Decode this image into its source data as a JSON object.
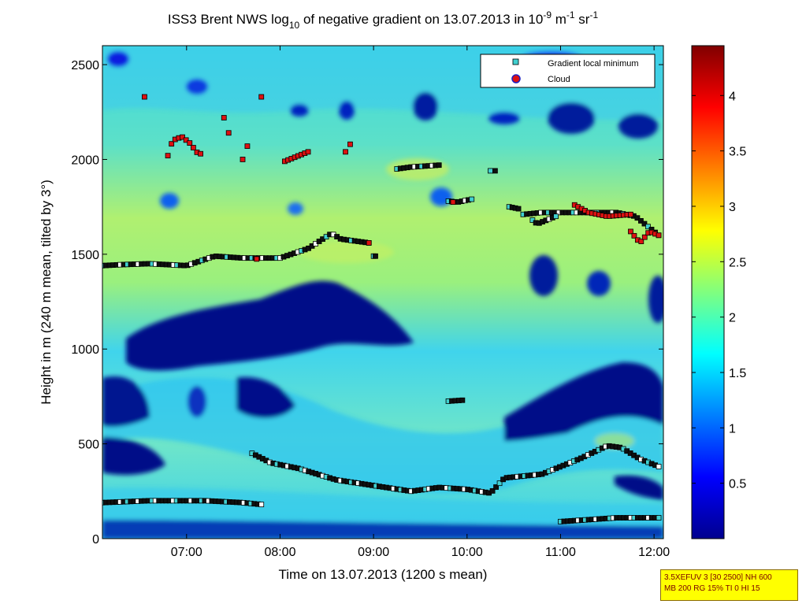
{
  "chart_data": {
    "type": "heatmap",
    "title": {
      "prefix": "ISS3 Brent NWS log",
      "sub": "10",
      "middle": " of negative gradient on 13.07.2013 in 10",
      "sup1": "-9",
      "unit1": " m",
      "sup2": "-1",
      "unit2": " sr",
      "sup3": "-1"
    },
    "xlabel": "Time on 13.07.2013 (1200 s mean)",
    "ylabel": "Height in m (240 m mean, tilted by 3°)",
    "xlim_hours": [
      6.1,
      12.1
    ],
    "ylim": [
      0,
      2600
    ],
    "x_ticks": [
      {
        "h": 7,
        "label": "07:00"
      },
      {
        "h": 8,
        "label": "08:00"
      },
      {
        "h": 9,
        "label": "09:00"
      },
      {
        "h": 10,
        "label": "10:00"
      },
      {
        "h": 11,
        "label": "11:00"
      },
      {
        "h": 12,
        "label": "12:00"
      }
    ],
    "y_ticks": [
      0,
      500,
      1000,
      1500,
      2000,
      2500
    ],
    "colorbar": {
      "range": [
        0,
        4.45
      ],
      "ticks": [
        "0.5",
        "1",
        "1.5",
        "2",
        "2.5",
        "3",
        "3.5",
        "4"
      ],
      "tick_values": [
        0.5,
        1,
        1.5,
        2,
        2.5,
        3,
        3.5,
        4
      ]
    },
    "legend": {
      "position": "top-right",
      "entries": [
        {
          "name": "Gradient local minimum",
          "color": "#40d0d0",
          "marker": "square"
        },
        {
          "name": "Cloud",
          "color": "#dd1111",
          "marker": "circle"
        }
      ]
    },
    "gradient_minima": [
      {
        "x": [
          6.1,
          6.3,
          6.6,
          7.0,
          7.3,
          7.6,
          8.0,
          8.3,
          8.55,
          8.65,
          8.8,
          8.95
        ],
        "y": [
          1440,
          1445,
          1450,
          1440,
          1490,
          1480,
          1480,
          1530,
          1610,
          1580,
          1570,
          1560
        ]
      },
      {
        "x": [
          9.0,
          9.02
        ],
        "y": [
          1490,
          1490
        ]
      },
      {
        "x": [
          9.25,
          9.4,
          9.55,
          9.7
        ],
        "y": [
          1950,
          1960,
          1965,
          1970
        ]
      },
      {
        "x": [
          9.8,
          9.9,
          10.05
        ],
        "y": [
          1780,
          1775,
          1790
        ]
      },
      {
        "x": [
          10.25,
          10.3
        ],
        "y": [
          1940,
          1940
        ]
      },
      {
        "x": [
          10.45,
          10.55
        ],
        "y": [
          1750,
          1740
        ]
      },
      {
        "x": [
          10.6,
          10.8,
          11.0,
          11.3,
          11.6,
          11.8,
          11.95,
          12.05
        ],
        "y": [
          1710,
          1720,
          1720,
          1720,
          1720,
          1700,
          1640,
          1600
        ]
      },
      {
        "x": [
          10.7,
          10.75,
          10.95
        ],
        "y": [
          1680,
          1660,
          1700
        ]
      },
      {
        "x": [
          9.8,
          9.95
        ],
        "y": [
          725,
          730
        ]
      },
      {
        "x": [
          6.1,
          6.6,
          7.2,
          7.6,
          7.8
        ],
        "y": [
          190,
          200,
          200,
          190,
          180
        ]
      },
      {
        "x": [
          7.7,
          7.9,
          8.2,
          8.6,
          9.0,
          9.4,
          9.7,
          10.0,
          10.25,
          10.4,
          10.8,
          11.2,
          11.5,
          11.65,
          11.85,
          12.05
        ],
        "y": [
          450,
          400,
          370,
          310,
          280,
          250,
          270,
          260,
          240,
          320,
          340,
          420,
          490,
          480,
          420,
          380
        ]
      },
      {
        "x": [
          11.0,
          11.3,
          11.6,
          12.05
        ],
        "y": [
          90,
          100,
          110,
          110
        ]
      }
    ],
    "clouds": [
      {
        "x": [
          6.55,
          6.56
        ],
        "y": [
          2330,
          2350
        ]
      },
      {
        "x": [
          6.8,
          6.85,
          6.95,
          7.05,
          7.1,
          7.15
        ],
        "y": [
          2020,
          2100,
          2120,
          2080,
          2040,
          2030
        ]
      },
      {
        "x": [
          7.4,
          7.42,
          7.45
        ],
        "y": [
          2220,
          2170,
          2140
        ]
      },
      {
        "x": [
          7.6,
          7.65
        ],
        "y": [
          2000,
          2070
        ]
      },
      {
        "x": [
          7.8
        ],
        "y": [
          2330
        ]
      },
      {
        "x": [
          8.05,
          8.15,
          8.25,
          8.3
        ],
        "y": [
          1990,
          2010,
          2030,
          2040
        ]
      },
      {
        "x": [
          8.7,
          8.75
        ],
        "y": [
          2040,
          2080
        ]
      },
      {
        "x": [
          7.75
        ],
        "y": [
          1475
        ]
      },
      {
        "x": [
          8.95
        ],
        "y": [
          1560
        ]
      },
      {
        "x": [
          9.85
        ],
        "y": [
          1775
        ]
      },
      {
        "x": [
          11.15,
          11.3,
          11.5,
          11.75
        ],
        "y": [
          1760,
          1720,
          1700,
          1710
        ]
      },
      {
        "x": [
          11.75,
          11.85,
          11.95,
          12.05
        ],
        "y": [
          1620,
          1560,
          1620,
          1600
        ]
      }
    ]
  },
  "info_box": {
    "line1": "3.5XEFUV 3 [30 2500] NH 600",
    "line2": "MB 200 RG 15% TI 0 HI 15"
  }
}
